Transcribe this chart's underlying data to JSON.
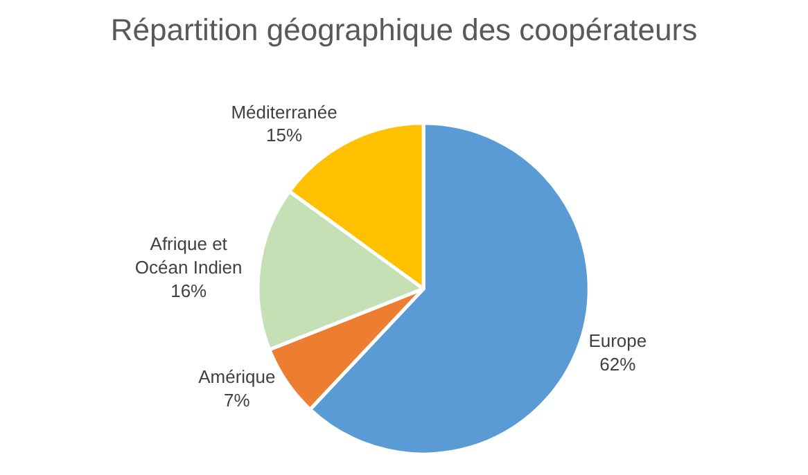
{
  "chart_data": {
    "type": "pie",
    "title": "Répartition géographique des coopérateurs",
    "categories": [
      "Europe",
      "Amérique",
      "Afrique et Océan Indien",
      "Méditerranée"
    ],
    "values": [
      62,
      7,
      16,
      15
    ],
    "value_labels": [
      "62%",
      "7%",
      "16%",
      "15%"
    ],
    "colors": [
      "#5b9bd5",
      "#ed7d31",
      "#c5e0b4",
      "#ffc000"
    ],
    "legend": false
  }
}
